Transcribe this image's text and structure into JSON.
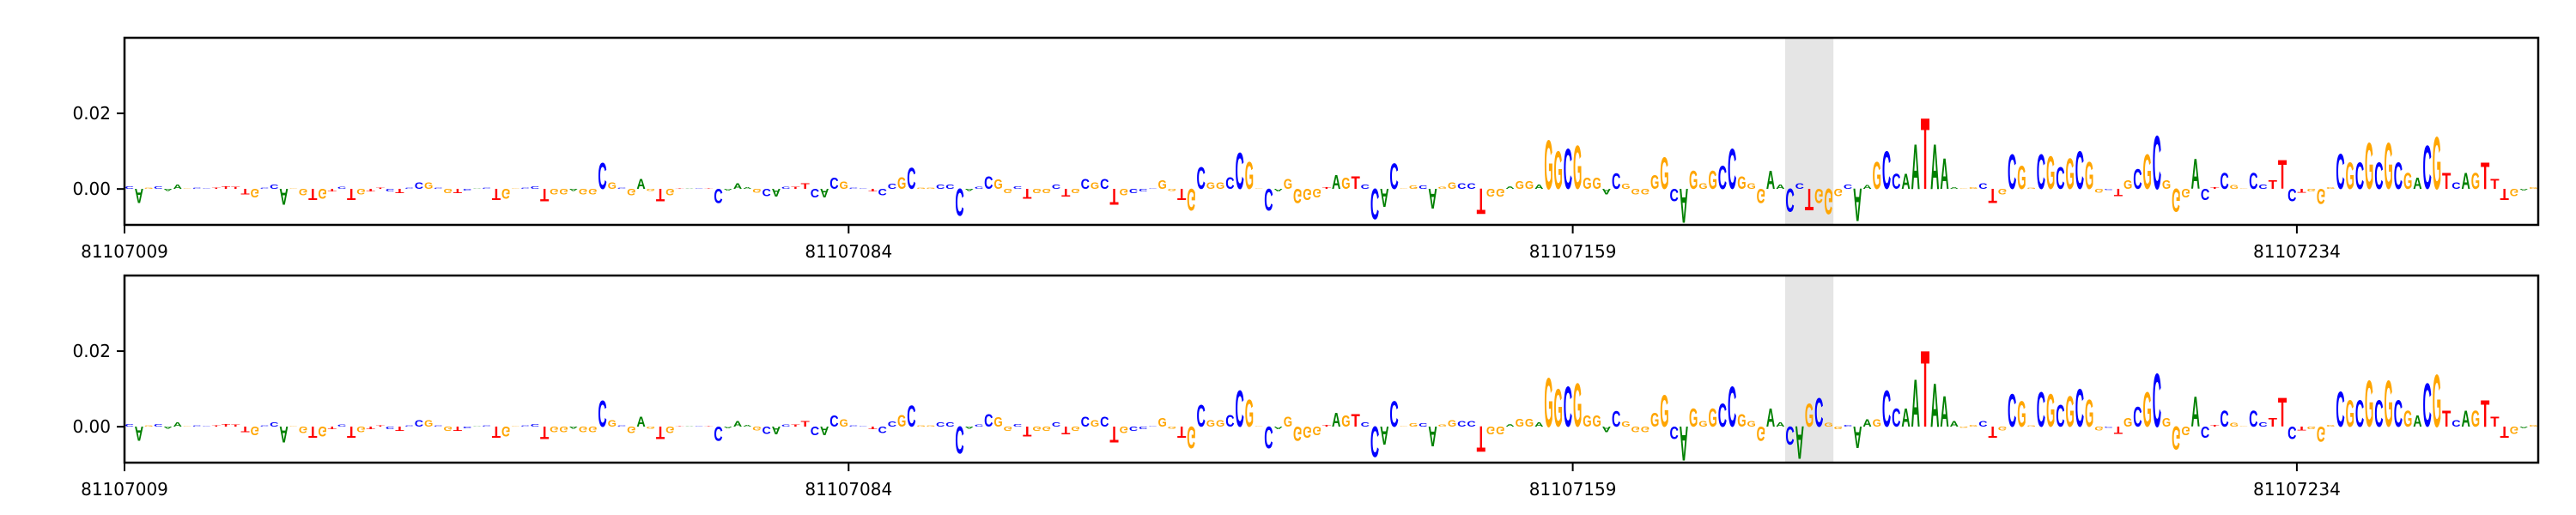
{
  "chart_data": {
    "type": "sequence-logo",
    "colors": {
      "A": "#008000",
      "C": "#0000ff",
      "G": "#ffa500",
      "T": "#ff0000",
      "highlight": "#e5e5e5"
    },
    "ylim": [
      -0.0095,
      0.04
    ],
    "yticks": [
      0.0,
      0.02
    ],
    "ytick_labels": [
      "0.00",
      "0.02"
    ],
    "grid": false,
    "start_position": 81107009,
    "xticks": [
      81107009,
      81107084,
      81107159,
      81107234
    ],
    "xtick_labels": [
      "81107009",
      "81107084",
      "81107159",
      "81107234"
    ],
    "panels": [
      {
        "highlight": {
          "start": 81107181,
          "end": 81107185
        },
        "sequence": "CAGCAAGCCTTTTGCCAGGTGTCTGTTCTCCGCGTCACTGGCCTGGAGGCGCGAGTGTACTCAAAGCACTTCACGCCTCCGCGGCCCACCGGCTGGCTGCGCTGCCCGGTGCGGCCGGCAGGGGTAGTCCACGGCAGGCCTGGAGGAGGCGGGACGGGGGCAGGGCCGGGAACCTGGGCAAGCCAATAAAGGCTGCGGCGCGCGGCTGCGCGGGACTCGGCCTTCTGGGCGCGCGCGACGTCAGTTTGAG",
        "values": [
          0.0008,
          -0.004,
          0.0003,
          0.0008,
          -0.0006,
          0.0012,
          0.0002,
          0.0003,
          0.0002,
          0.0003,
          0.0008,
          0.0006,
          -0.0015,
          -0.0025,
          0.0003,
          0.0012,
          -0.0045,
          0.0002,
          -0.0018,
          -0.003,
          -0.0028,
          -0.0008,
          0.0006,
          -0.003,
          -0.0015,
          -0.0008,
          0.0003,
          -0.0008,
          -0.0012,
          0.0003,
          0.0018,
          0.0018,
          0.0003,
          -0.0012,
          -0.0012,
          -0.0005,
          0.0001,
          0.0003,
          -0.003,
          -0.0028,
          0.0002,
          0.0003,
          0.0008,
          -0.0035,
          -0.0015,
          -0.0015,
          -0.0006,
          -0.0015,
          -0.0015,
          0.0072,
          0.0018,
          0.0003,
          -0.0018,
          0.0028,
          -0.0006,
          -0.0035,
          -0.0018,
          0.0002,
          0.0001,
          0.0001,
          0.0002,
          -0.004,
          -0.0004,
          0.0015,
          0.0004,
          -0.001,
          -0.002,
          -0.0022,
          0.0006,
          0.0006,
          0.0015,
          -0.0025,
          -0.0025,
          0.003,
          0.002,
          0.0003,
          0.0002,
          -0.0008,
          -0.0018,
          0.0014,
          0.0032,
          0.0058,
          0.0003,
          0.0003,
          0.0012,
          0.0012,
          -0.0075,
          -0.0006,
          0.0006,
          0.0035,
          0.0026,
          -0.0012,
          0.0008,
          -0.0028,
          -0.0012,
          -0.0012,
          0.0012,
          -0.0022,
          -0.0012,
          0.0028,
          0.0018,
          0.0028,
          -0.0045,
          -0.0018,
          -0.0012,
          -0.0008,
          0.0002,
          0.0025,
          -0.0006,
          -0.003,
          -0.006,
          0.006,
          0.0018,
          0.0018,
          0.0032,
          0.01,
          0.0075,
          0.0002,
          -0.006,
          -0.0008,
          0.0028,
          -0.004,
          -0.003,
          -0.0025,
          0.0004,
          0.0038,
          0.003,
          0.0035,
          0.0012,
          -0.0085,
          -0.005,
          0.007,
          0.0002,
          0.0009,
          0.0009,
          -0.0055,
          0.0006,
          0.0018,
          0.0015,
          0.0015,
          -0.007,
          -0.0022,
          -0.0022,
          0.0008,
          0.0022,
          0.0022,
          0.0012,
          0.0135,
          0.0105,
          0.011,
          0.012,
          0.003,
          0.003,
          -0.0015,
          0.0043,
          0.0013,
          -0.0015,
          -0.0015,
          0.0038,
          0.0088,
          -0.0035,
          -0.0095,
          0.005,
          0.0015,
          0.005,
          0.0065,
          0.011,
          0.0035,
          0.0015,
          -0.004,
          0.005,
          0.0012,
          -0.0065,
          0.0015,
          -0.006,
          -0.004,
          -0.007,
          -0.002,
          0.0012,
          -0.009,
          0.001,
          0.0075,
          0.0105,
          0.0042,
          0.0042,
          0.0125,
          0.0197,
          0.0125,
          0.0085,
          0.0004,
          0.0002,
          0.0004,
          0.0015,
          -0.004,
          -0.0015,
          0.0095,
          0.0065,
          0.0003,
          0.0095,
          0.009,
          0.006,
          0.0085,
          0.0105,
          0.0075,
          -0.001,
          -0.0003,
          -0.002,
          0.0025,
          0.0055,
          0.0095,
          0.0148,
          0.0025,
          -0.0065,
          -0.0025,
          0.0083,
          -0.003,
          0.0004,
          0.0045,
          0.001,
          0.0002,
          0.0045,
          0.0012,
          0.0025,
          0.008,
          -0.0035,
          -0.001,
          -0.0008,
          -0.0042,
          0.0004,
          0.0097,
          0.0074,
          0.0074,
          0.0127,
          0.0074,
          0.0127,
          0.0074,
          0.0045,
          0.003,
          0.012,
          0.0144,
          0.0045,
          0.0019,
          0.0045,
          0.0045,
          0.0074,
          0.0027,
          -0.003,
          -0.002,
          -0.0004,
          0.0004
        ]
      },
      {
        "highlight": {
          "start": 81107181,
          "end": 81107185
        },
        "sequence": "CAGCAAGCCTTTTGCCAGGTGTCTGTTCTCCGCGTCACTGGCCTGGAGGCGCGAGTGTACTCAAAGCACTTCACGCCTCCGCGGCCCACCGGCTGGCTGCGCTGCCCGGTGCGGCCGGCAGGGGTAGTCCACGGCAGGCCTGGAGGAGGCGGGACGGGGGCAGGGCCGGGAACAGCGGCAAGCCAATAAAGGCTGCGGCGCGCGGCTGCGCGGGACTCGGCCTTCTGGGCGCGCGCGACGTCAGTTTGAG",
        "values": [
          0.0008,
          -0.004,
          0.0003,
          0.0008,
          -0.0006,
          0.0012,
          0.0002,
          0.0003,
          0.0002,
          0.0003,
          0.0008,
          0.0006,
          -0.0015,
          -0.0025,
          0.0003,
          0.0012,
          -0.0045,
          0.0002,
          -0.0018,
          -0.003,
          -0.0028,
          -0.0008,
          0.0006,
          -0.003,
          -0.0015,
          -0.0008,
          0.0003,
          -0.0008,
          -0.0012,
          0.0003,
          0.0018,
          0.0018,
          0.0003,
          -0.0012,
          -0.0012,
          -0.0005,
          0.0001,
          0.0003,
          -0.003,
          -0.0028,
          0.0002,
          0.0003,
          0.0008,
          -0.0035,
          -0.0015,
          -0.0015,
          -0.0006,
          -0.0015,
          -0.0015,
          0.0072,
          0.0018,
          0.0003,
          -0.0018,
          0.0028,
          -0.0006,
          -0.0035,
          -0.0018,
          0.0002,
          0.0001,
          0.0001,
          0.0002,
          -0.004,
          -0.0004,
          0.0015,
          0.0004,
          -0.001,
          -0.002,
          -0.0022,
          0.0006,
          0.0006,
          0.0015,
          -0.0025,
          -0.0025,
          0.003,
          0.002,
          0.0003,
          0.0002,
          -0.0008,
          -0.0018,
          0.0014,
          0.0032,
          0.0058,
          0.0003,
          0.0003,
          0.0012,
          0.0012,
          -0.0075,
          -0.0006,
          0.0006,
          0.0035,
          0.0026,
          -0.0012,
          0.0008,
          -0.0028,
          -0.0012,
          -0.0012,
          0.0012,
          -0.0022,
          -0.0012,
          0.0028,
          0.0018,
          0.0028,
          -0.0045,
          -0.0018,
          -0.0012,
          -0.0008,
          0.0002,
          0.0025,
          -0.0006,
          -0.003,
          -0.006,
          0.006,
          0.0018,
          0.0018,
          0.0032,
          0.01,
          0.0075,
          0.0002,
          -0.006,
          -0.0008,
          0.0028,
          -0.004,
          -0.003,
          -0.0025,
          0.0004,
          0.0038,
          0.003,
          0.0035,
          0.0012,
          -0.0085,
          -0.005,
          0.007,
          0.0002,
          0.0009,
          0.0009,
          -0.0055,
          0.0006,
          0.0018,
          0.0015,
          0.0015,
          -0.007,
          -0.0022,
          -0.0022,
          0.0008,
          0.0022,
          0.0022,
          0.0012,
          0.0135,
          0.0105,
          0.011,
          0.012,
          0.003,
          0.003,
          -0.0015,
          0.0043,
          0.0013,
          -0.0015,
          -0.0015,
          0.0038,
          0.0088,
          -0.0035,
          -0.0095,
          0.005,
          0.0015,
          0.005,
          0.0065,
          0.011,
          0.0035,
          0.0015,
          -0.004,
          0.005,
          0.0012,
          -0.005,
          -0.009,
          0.0065,
          0.008,
          0.001,
          -0.0008,
          0.0005,
          -0.006,
          0.002,
          0.002,
          0.01,
          0.005,
          0.005,
          0.013,
          0.021,
          0.012,
          0.0085,
          0.0015,
          -0.0003,
          0.0004,
          0.0015,
          -0.003,
          -0.001,
          0.009,
          0.007,
          0.0003,
          0.0095,
          0.009,
          0.006,
          0.0085,
          0.0105,
          0.0075,
          -0.001,
          -0.0003,
          -0.002,
          0.0025,
          0.0055,
          0.0095,
          0.0148,
          0.0025,
          -0.0065,
          -0.0025,
          0.0083,
          -0.003,
          0.0004,
          0.0045,
          0.001,
          0.0002,
          0.0045,
          0.0012,
          0.0025,
          0.008,
          -0.0035,
          -0.001,
          -0.0008,
          -0.0042,
          0.0004,
          0.0097,
          0.0074,
          0.0074,
          0.0127,
          0.0074,
          0.0127,
          0.0074,
          0.0045,
          0.003,
          0.012,
          0.0144,
          0.0045,
          0.0019,
          0.0045,
          0.0045,
          0.0074,
          0.0027,
          -0.003,
          -0.002,
          -0.0004,
          0.0004
        ]
      }
    ]
  }
}
